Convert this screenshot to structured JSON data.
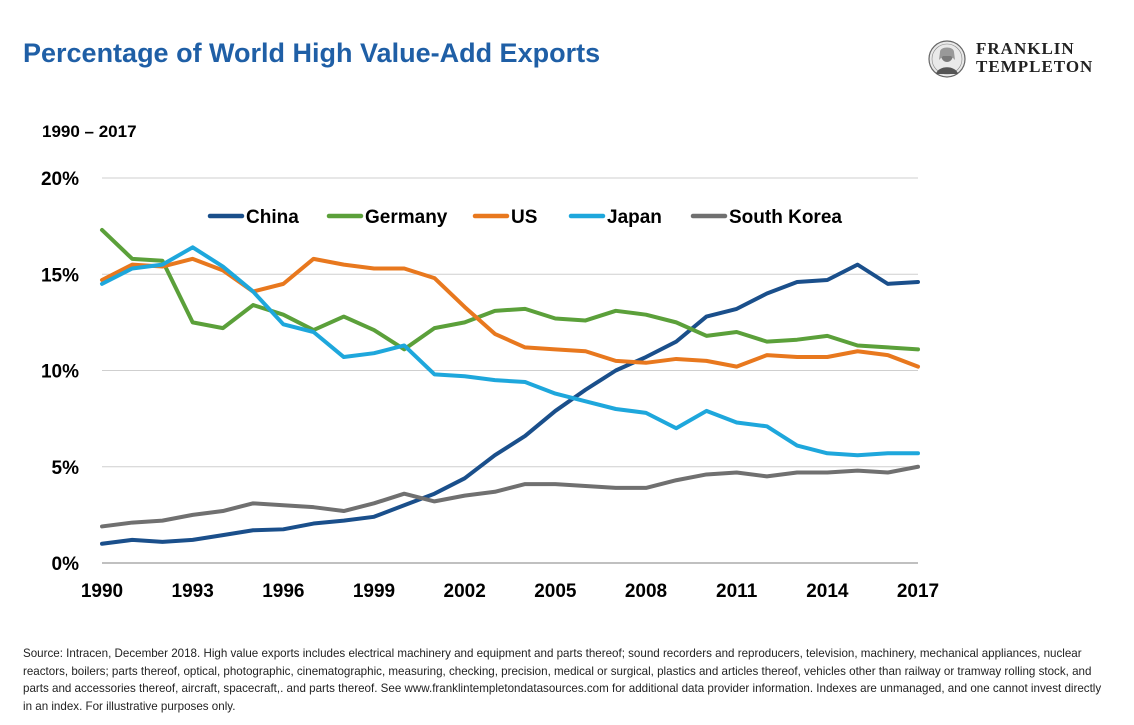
{
  "header": {
    "title": "Percentage of World High Value-Add Exports",
    "subtitle": "1990 – 2017"
  },
  "logo": {
    "line1": "FRANKLIN",
    "line2": "TEMPLETON",
    "icon": "benjamin-franklin-portrait-seal"
  },
  "footer": {
    "source": "Source: Intracen, December 2018. High value exports includes electrical machinery and equipment and parts thereof; sound recorders and reproducers, television, machinery, mechanical appliances, nuclear reactors, boilers; parts thereof, optical, photographic, cinematographic, measuring, checking, precision, medical or surgical, plastics and articles thereof, vehicles other than railway or tramway rolling stock, and parts and accessories thereof, aircraft, spacecraft,. and parts thereof. See www.franklintempletondatasources.com for additional data provider information. Indexes are unmanaged, and one cannot invest directly in an index. For illustrative purposes only."
  },
  "chart_data": {
    "type": "line",
    "title": "Percentage of World High Value-Add Exports",
    "subtitle": "1990 – 2017",
    "xlabel": "",
    "ylabel": "",
    "x": [
      1990,
      1991,
      1992,
      1993,
      1994,
      1995,
      1996,
      1997,
      1998,
      1999,
      2000,
      2001,
      2002,
      2003,
      2004,
      2005,
      2006,
      2007,
      2008,
      2009,
      2010,
      2011,
      2012,
      2013,
      2014,
      2015,
      2016,
      2017
    ],
    "xlim": [
      1990,
      2017
    ],
    "ylim": [
      0,
      20
    ],
    "x_ticks": [
      1990,
      1993,
      1996,
      1999,
      2002,
      2005,
      2008,
      2011,
      2014,
      2017
    ],
    "y_ticks": [
      0,
      5,
      10,
      15,
      20
    ],
    "y_tick_labels": [
      "0%",
      "5%",
      "10%",
      "15%",
      "20%"
    ],
    "grid": "horizontal",
    "legend_position": "top-center",
    "series": [
      {
        "name": "China",
        "color": "#1a4f8b",
        "values": [
          1.0,
          1.2,
          1.1,
          1.2,
          1.45,
          1.7,
          1.75,
          2.05,
          2.2,
          2.4,
          3.0,
          3.6,
          4.4,
          5.6,
          6.6,
          7.9,
          9.0,
          10.0,
          10.7,
          11.5,
          12.8,
          13.2,
          14.0,
          14.6,
          14.7,
          15.5,
          14.5,
          14.6
        ]
      },
      {
        "name": "Germany",
        "color": "#5ba03a",
        "values": [
          17.3,
          15.8,
          15.7,
          12.5,
          12.2,
          13.4,
          12.9,
          12.1,
          12.8,
          12.1,
          11.1,
          12.2,
          12.5,
          13.1,
          13.2,
          12.7,
          12.6,
          13.1,
          12.9,
          12.5,
          11.8,
          12.0,
          11.5,
          11.6,
          11.8,
          11.3,
          11.2,
          11.1
        ]
      },
      {
        "name": "US",
        "color": "#e8781e",
        "values": [
          14.7,
          15.5,
          15.4,
          15.8,
          15.2,
          14.1,
          14.5,
          15.8,
          15.5,
          15.3,
          15.3,
          14.8,
          13.3,
          11.9,
          11.2,
          11.1,
          11.0,
          10.5,
          10.4,
          10.6,
          10.5,
          10.2,
          10.8,
          10.7,
          10.7,
          11.0,
          10.8,
          10.2
        ]
      },
      {
        "name": "Japan",
        "color": "#1ea7dc",
        "values": [
          14.5,
          15.3,
          15.5,
          16.4,
          15.4,
          14.1,
          12.4,
          12.0,
          10.7,
          10.9,
          11.3,
          9.8,
          9.7,
          9.5,
          9.4,
          8.8,
          8.4,
          8.0,
          7.8,
          7.0,
          7.9,
          7.3,
          7.1,
          6.1,
          5.7,
          5.6,
          5.7,
          5.7
        ]
      },
      {
        "name": "South Korea",
        "color": "#707070",
        "values": [
          1.9,
          2.1,
          2.2,
          2.5,
          2.7,
          3.1,
          3.0,
          2.9,
          2.7,
          3.1,
          3.6,
          3.2,
          3.5,
          3.7,
          4.1,
          4.1,
          4.0,
          3.9,
          3.9,
          4.3,
          4.6,
          4.7,
          4.5,
          4.7,
          4.7,
          4.8,
          4.7,
          5.0
        ]
      }
    ]
  }
}
